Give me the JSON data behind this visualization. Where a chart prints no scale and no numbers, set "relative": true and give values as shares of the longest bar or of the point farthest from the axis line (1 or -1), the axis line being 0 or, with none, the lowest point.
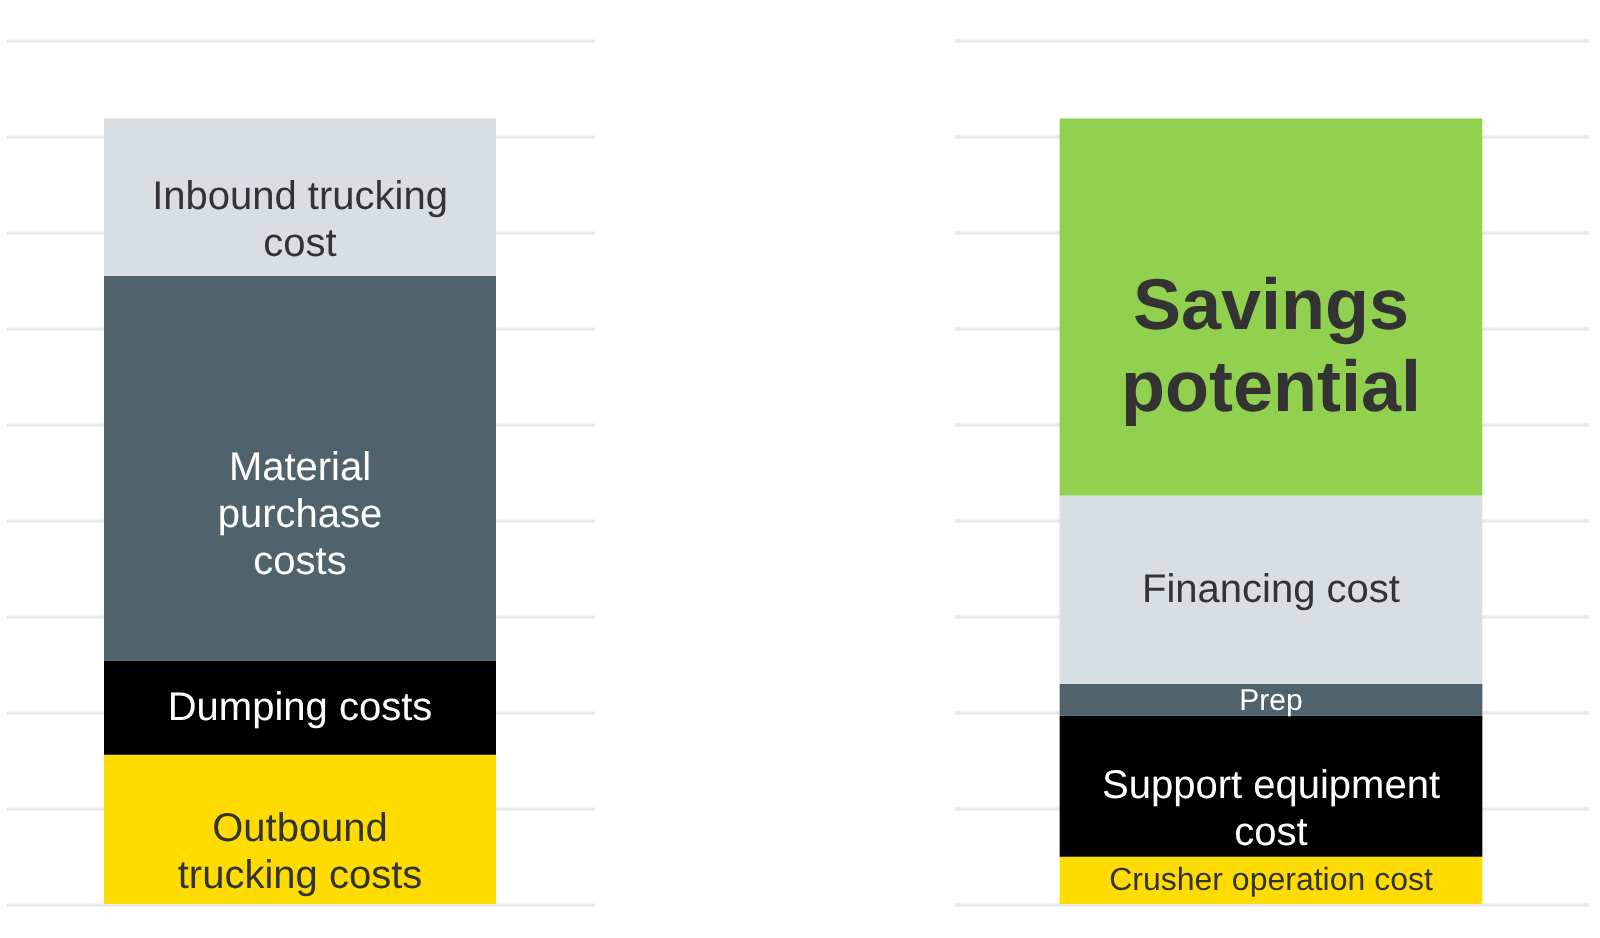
{
  "chart_data": [
    {
      "type": "bar",
      "stacked": true,
      "relative": true,
      "grid": "y",
      "categories": [
        null
      ],
      "series": [
        {
          "name": "Outbound\ntrucking costs",
          "color": "#ffdc00",
          "values": [
            0.19
          ]
        },
        {
          "name": "Dumping costs",
          "color": "#000000",
          "values": [
            0.12
          ]
        },
        {
          "name": "Material\npurchase\ncosts",
          "color": "#50626b",
          "values": [
            0.49
          ]
        },
        {
          "name": "Inbound trucking\ncost",
          "color": "#d8dee2",
          "values": [
            0.2
          ]
        }
      ]
    },
    {
      "type": "bar",
      "stacked": true,
      "relative": true,
      "grid": "y",
      "categories": [
        null
      ],
      "series": [
        {
          "name": "Crusher operation cost",
          "color": "#ffdc00",
          "values": [
            0.06
          ]
        },
        {
          "name": "Support equipment\ncost",
          "color": "#000000",
          "values": [
            0.18
          ]
        },
        {
          "name": "Prep",
          "color": "#50626b",
          "values": [
            0.04
          ]
        },
        {
          "name": "Financing cost",
          "color": "#d8dee2",
          "values": [
            0.24
          ]
        },
        {
          "name": "Savings\npotential",
          "color": "#92d050",
          "values": [
            0.48
          ]
        }
      ]
    }
  ]
}
